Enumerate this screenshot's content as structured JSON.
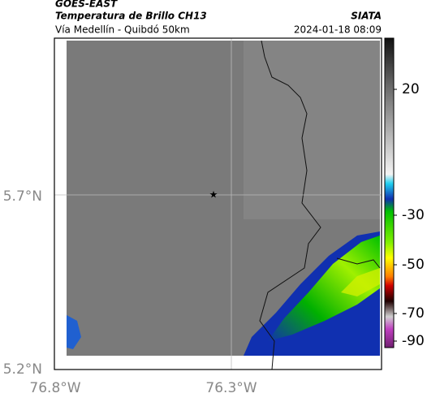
{
  "header": {
    "source": "GOES-EAST",
    "title": "Temperatura de Brillo CH13",
    "subtitle": "Vía Medellín - Quibdó 50km",
    "credit": "SIATA",
    "timestamp": "2024-01-18 08:09"
  },
  "map": {
    "lat_labels": [
      "5.7°N",
      "5.2°N"
    ],
    "lon_labels": [
      "76.8°W",
      "76.3°W"
    ]
  },
  "colorbar": {
    "tick_labels": [
      "20",
      "-30",
      "-50",
      "-70",
      "-90"
    ]
  }
}
